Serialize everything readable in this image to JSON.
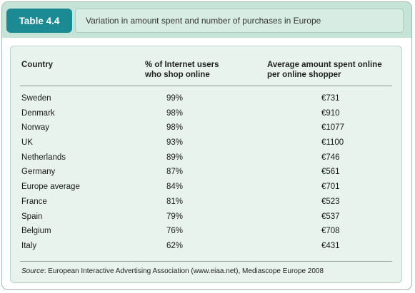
{
  "table": {
    "tag": "Table 4.4",
    "caption": "Variation in amount spent and number of purchases in Europe",
    "columns": {
      "country": "Country",
      "pct_line1": "% of Internet users",
      "pct_line2": "who shop online",
      "amount_line1": "Average amount spent online",
      "amount_line2": "per online shopper"
    },
    "rows": [
      {
        "country": "Sweden",
        "pct": "99%",
        "amount": "€731"
      },
      {
        "country": "Denmark",
        "pct": "98%",
        "amount": "€910"
      },
      {
        "country": "Norway",
        "pct": "98%",
        "amount": "€1077"
      },
      {
        "country": "UK",
        "pct": "93%",
        "amount": "€1100"
      },
      {
        "country": "Netherlands",
        "pct": "89%",
        "amount": "€746"
      },
      {
        "country": "Germany",
        "pct": "87%",
        "amount": "€561"
      },
      {
        "country": "Europe average",
        "pct": "84%",
        "amount": "€701"
      },
      {
        "country": "France",
        "pct": "81%",
        "amount": "€523"
      },
      {
        "country": "Spain",
        "pct": "79%",
        "amount": "€537"
      },
      {
        "country": "Belgium",
        "pct": "76%",
        "amount": "€708"
      },
      {
        "country": "Italy",
        "pct": "62%",
        "amount": "€431"
      }
    ],
    "source_label": "Source",
    "source_text": ": European Interactive Advertising Association (www.eiaa.net), Mediascope Europe 2008"
  }
}
